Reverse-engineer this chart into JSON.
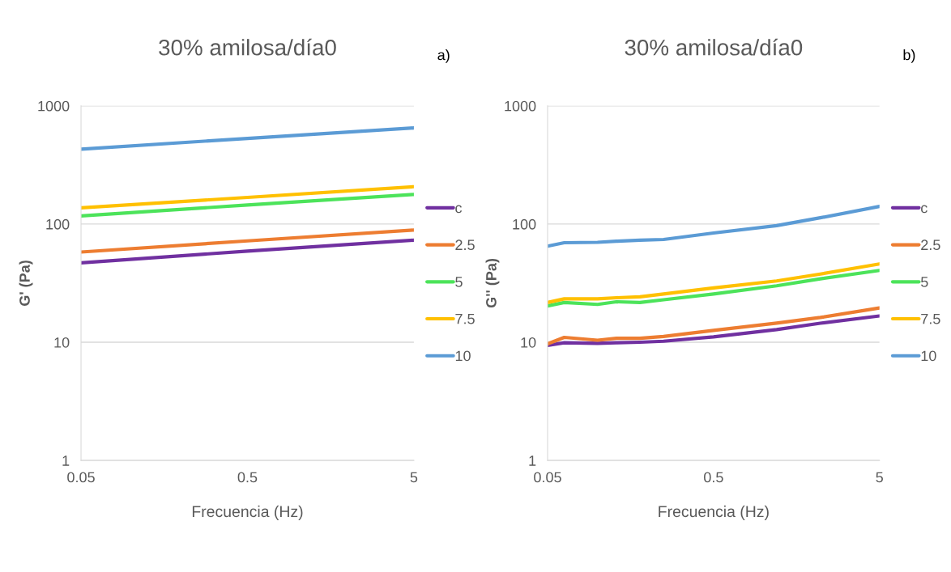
{
  "chart_data": [
    {
      "type": "line",
      "title": "30% amilosa/día0",
      "xlabel": "Frecuencia (Hz)",
      "ylabel": "G' (Pa)",
      "annotations": [
        "a)"
      ],
      "log": "xy",
      "xlim": [
        0.05,
        5
      ],
      "xticks": [
        0.05,
        0.5,
        5
      ],
      "ylim": [
        1,
        1000
      ],
      "yticks": [
        1,
        10,
        100,
        1000
      ],
      "grid": "y",
      "legend": "right",
      "x": [
        0.05,
        0.5,
        5
      ],
      "series": [
        {
          "name": "c",
          "color": "#7030a0",
          "values": [
            47,
            59,
            73
          ]
        },
        {
          "name": "2.5",
          "color": "#ed7d31",
          "values": [
            58,
            72,
            89
          ]
        },
        {
          "name": "5",
          "color": "#4ce35a",
          "values": [
            117,
            145,
            178
          ]
        },
        {
          "name": "7.5",
          "color": "#ffc000",
          "values": [
            137,
            168,
            207
          ]
        },
        {
          "name": "10",
          "color": "#5b9bd5",
          "values": [
            430,
            530,
            650
          ]
        }
      ]
    },
    {
      "type": "line",
      "title": "30% amilosa/día0",
      "xlabel": "Frecuencia (Hz)",
      "ylabel": "G'' (Pa)",
      "annotations": [
        "b)"
      ],
      "log": "xy",
      "xlim": [
        0.05,
        5
      ],
      "xticks": [
        0.05,
        0.5,
        5
      ],
      "ylim": [
        1,
        1000
      ],
      "yticks": [
        1,
        10,
        100,
        1000
      ],
      "grid": "y",
      "legend": "right",
      "x": [
        0.05,
        0.063,
        0.1,
        0.13,
        0.18,
        0.25,
        0.5,
        1.2,
        2.2,
        5
      ],
      "series": [
        {
          "name": "c",
          "color": "#7030a0",
          "values": [
            9.4,
            9.9,
            9.8,
            9.9,
            10,
            10.2,
            11.1,
            12.8,
            14.5,
            16.7
          ]
        },
        {
          "name": "2.5",
          "color": "#ed7d31",
          "values": [
            9.7,
            11,
            10.4,
            10.8,
            10.8,
            11.2,
            12.6,
            14.5,
            16.2,
            19.5
          ]
        },
        {
          "name": "5",
          "color": "#4ce35a",
          "values": [
            20.3,
            21.7,
            20.9,
            22,
            21.7,
            22.9,
            25.6,
            30,
            34.4,
            40.5
          ]
        },
        {
          "name": "7.5",
          "color": "#ffc000",
          "values": [
            21.7,
            23.3,
            23.3,
            23.8,
            24.2,
            25.6,
            28.8,
            33,
            37.7,
            46
          ]
        },
        {
          "name": "10",
          "color": "#5b9bd5",
          "values": [
            65,
            69.5,
            70,
            71.5,
            73,
            74,
            84,
            97,
            113,
            141
          ]
        }
      ]
    }
  ]
}
